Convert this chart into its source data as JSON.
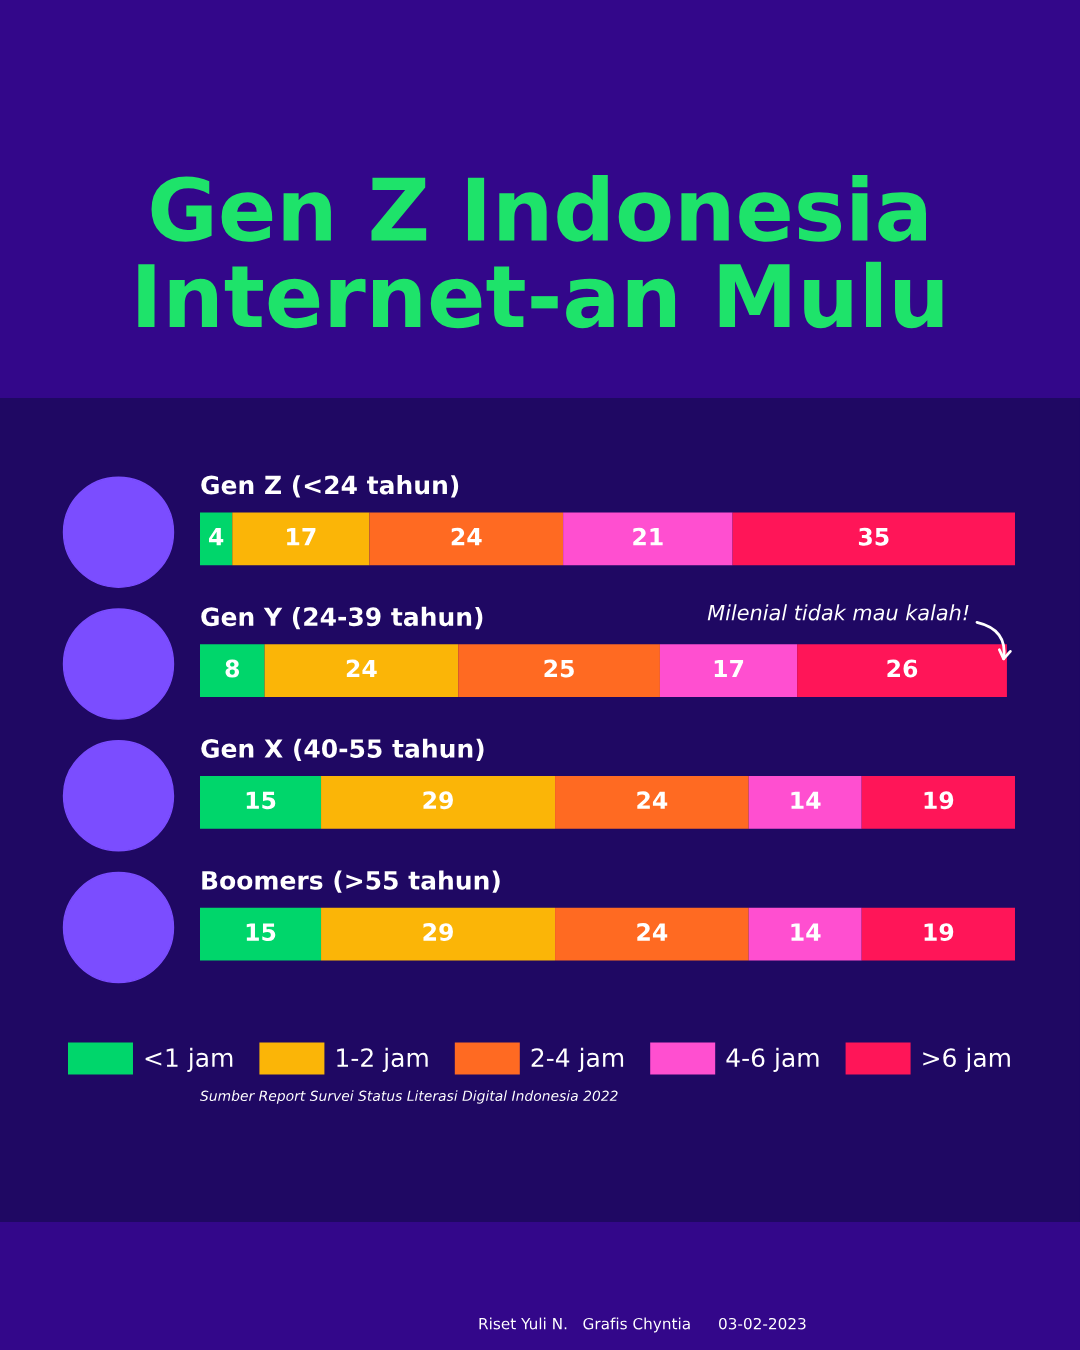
{
  "chart_data": {
    "type": "bar",
    "orientation": "horizontal",
    "stacked": true,
    "title": "Gen Z Indonesia\nInternet-an Mulu",
    "categories": [
      "Gen Z (<24 tahun)",
      "Gen Y (24-39 tahun)",
      "Gen X (40-55 tahun)",
      "Boomers (>55 tahun)"
    ],
    "series": [
      {
        "name": "<1 jam",
        "color": "#00d66b",
        "values": [
          4,
          8,
          15,
          15
        ]
      },
      {
        "name": "1-2 jam",
        "color": "#fbb507",
        "values": [
          17,
          24,
          29,
          29
        ]
      },
      {
        "name": "2-4 jam",
        "color": "#ff6a22",
        "values": [
          24,
          25,
          24,
          24
        ]
      },
      {
        "name": "4-6 jam",
        "color": "#ff4fd0",
        "values": [
          21,
          17,
          14,
          14
        ]
      },
      {
        "name": ">6 jam",
        "color": "#ff1558",
        "values": [
          35,
          26,
          19,
          19
        ]
      }
    ],
    "data_labels": true,
    "legend": "bottom",
    "tick_labels": false,
    "grid": false,
    "annotations": [
      "Milenial tidak mau kalah!",
      "Sumber Report Survei Status Literasi Digital Indonesia 2022",
      "Riset Yuli N.   Grafis Chyntia",
      "03-02-2023"
    ]
  }
}
